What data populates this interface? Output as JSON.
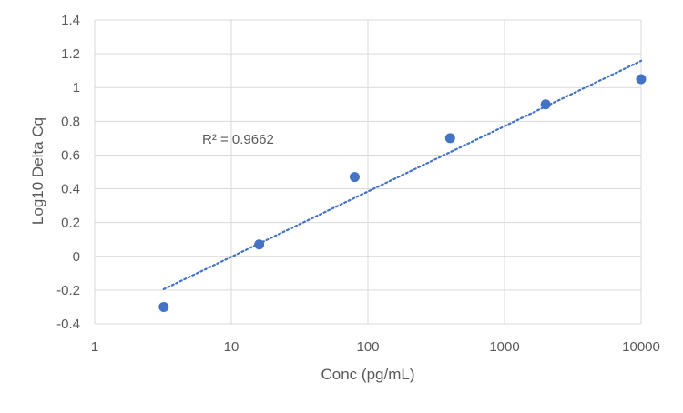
{
  "chart_data": {
    "type": "scatter",
    "xlabel": "Conc (pg/mL)",
    "ylabel": "Log10 Delta Cq",
    "x_scale": "log",
    "xlim": [
      1,
      10000
    ],
    "ylim": [
      -0.4,
      1.4
    ],
    "x_ticks": [
      "1",
      "10",
      "100",
      "1000",
      "10000"
    ],
    "y_ticks": [
      "-0.4",
      "-0.2",
      "0",
      "0.2",
      "0.4",
      "0.6",
      "0.8",
      "1",
      "1.2",
      "1.4"
    ],
    "grid": true,
    "legend": "none",
    "marker_color": "#4472C4",
    "points": [
      {
        "x": 3.2,
        "y": -0.3
      },
      {
        "x": 16,
        "y": 0.07
      },
      {
        "x": 80,
        "y": 0.47
      },
      {
        "x": 400,
        "y": 0.7
      },
      {
        "x": 2000,
        "y": 0.9
      },
      {
        "x": 10000,
        "y": 1.05
      }
    ],
    "trendline": {
      "type": "logarithmic",
      "style": "dotted",
      "color": "#4472C4",
      "label": "R² = 0.9662"
    }
  }
}
